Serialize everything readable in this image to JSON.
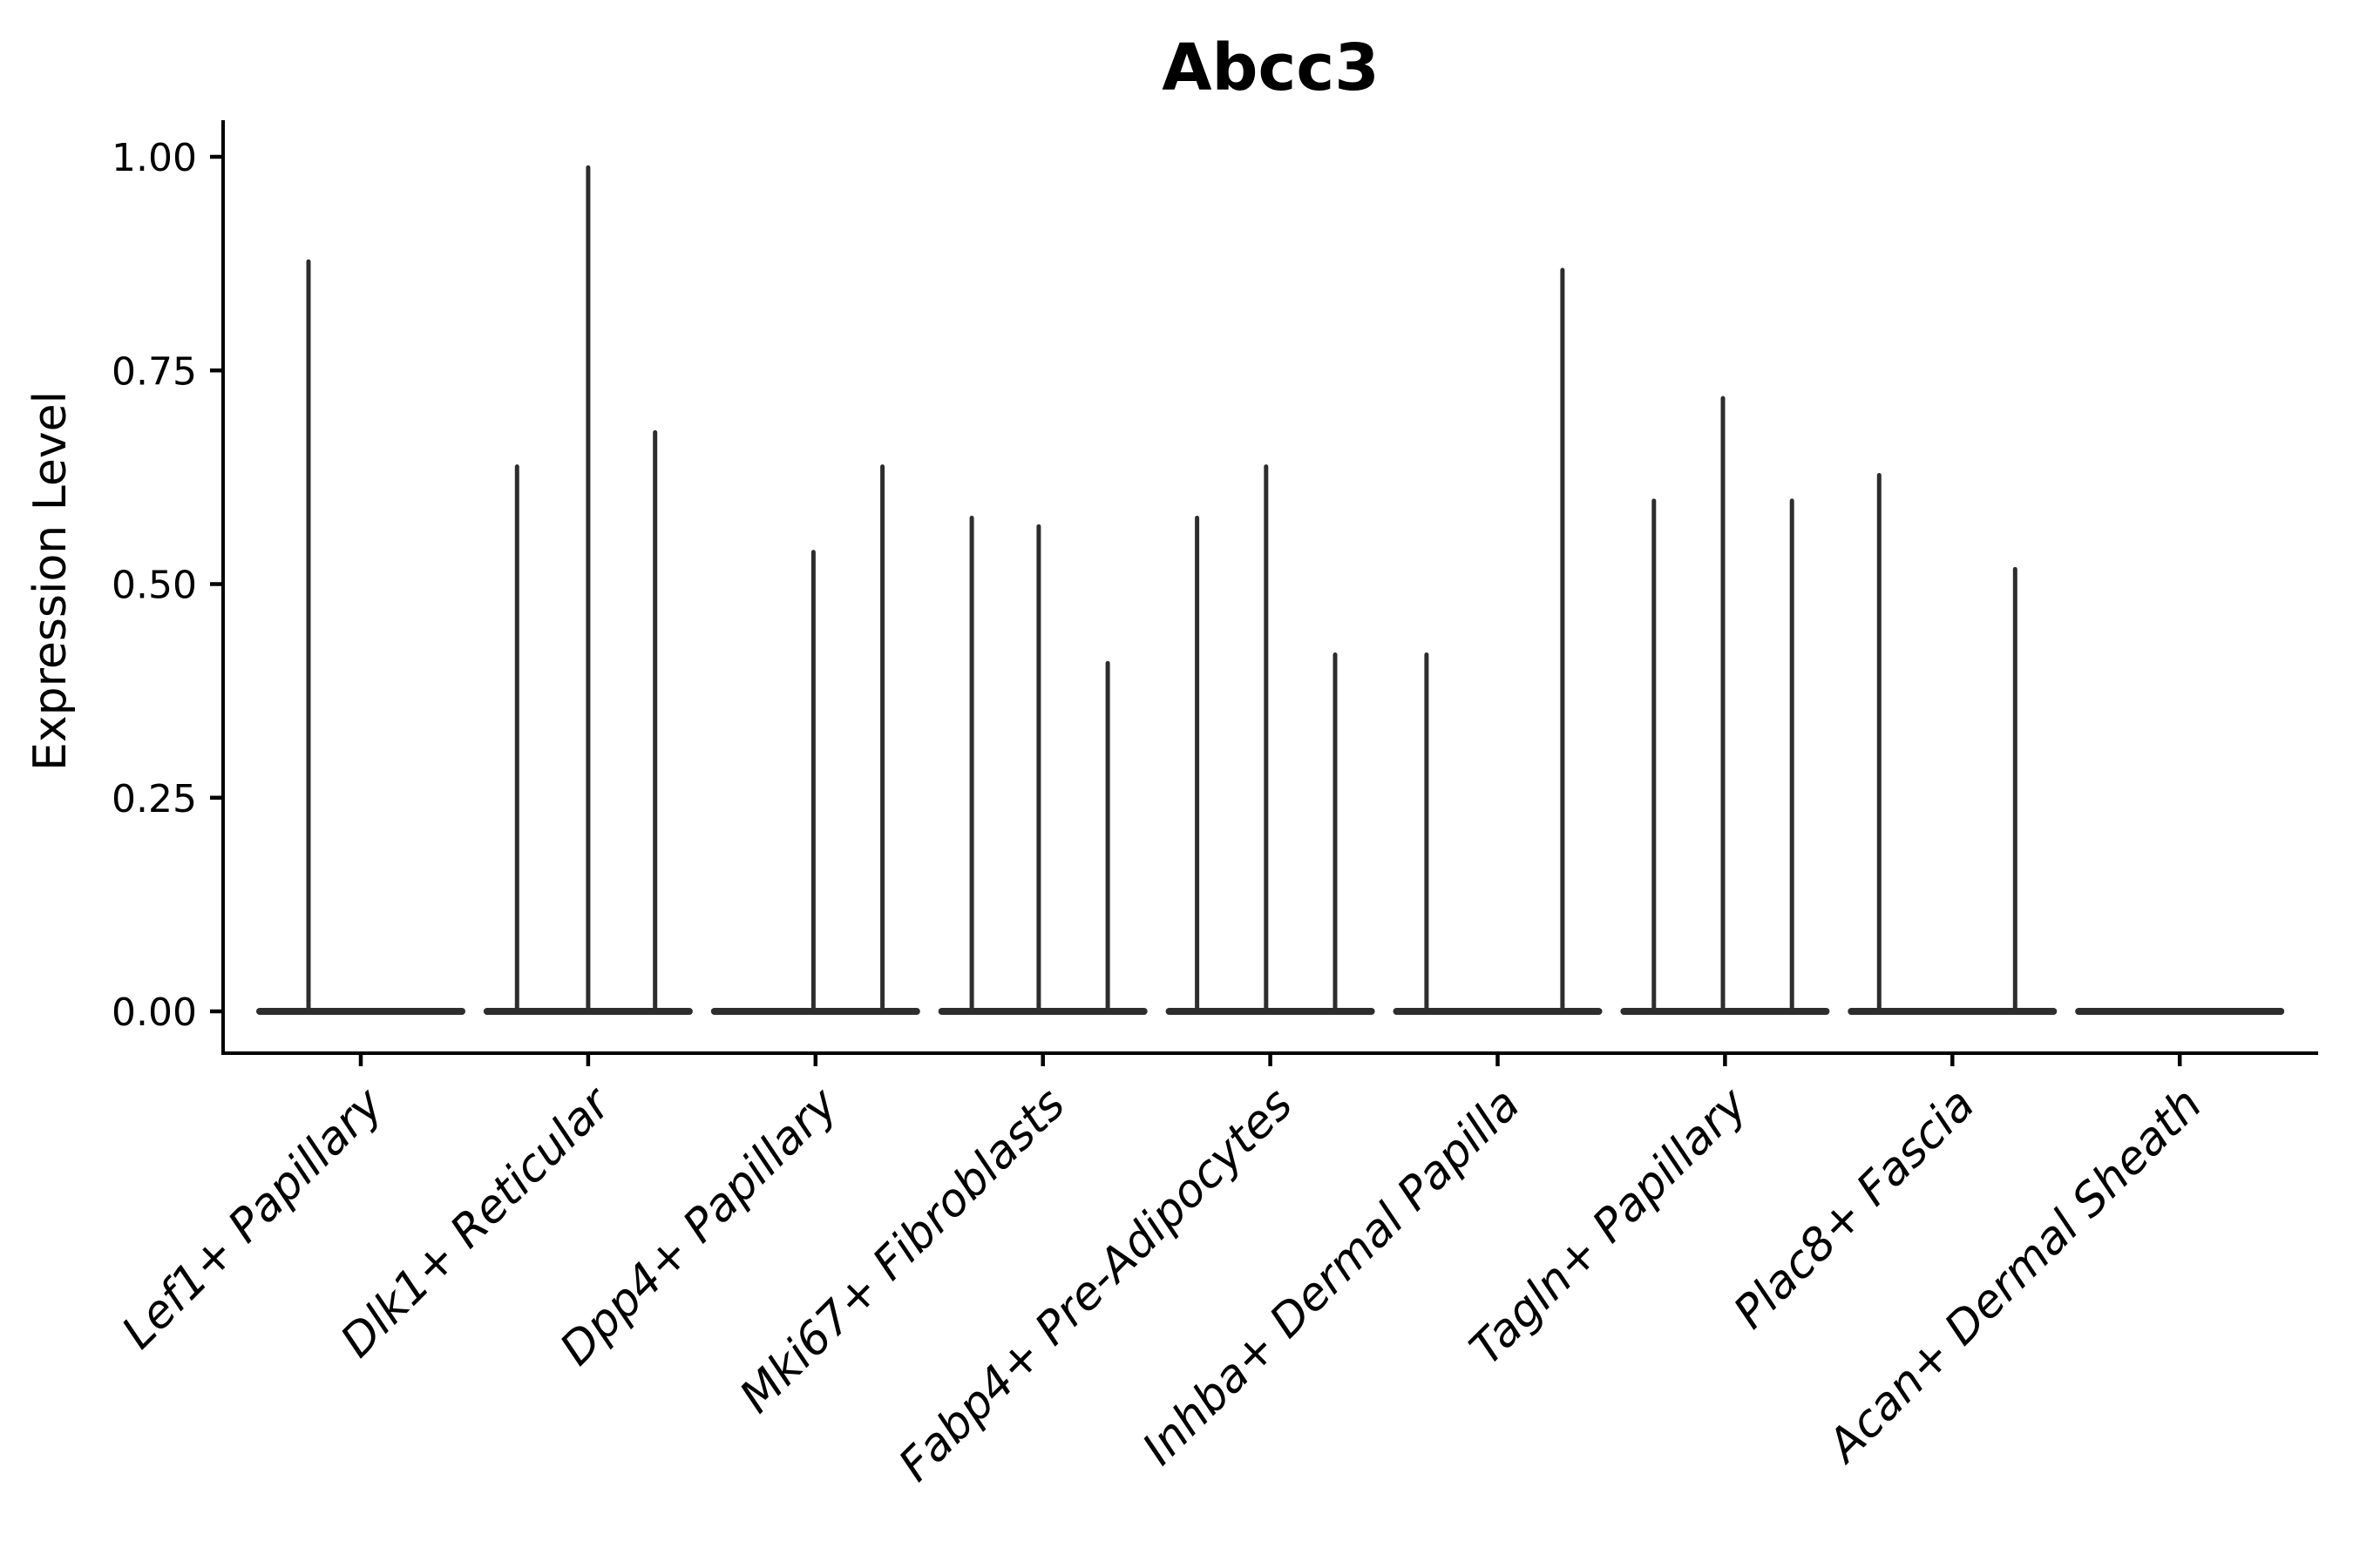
{
  "chart_data": {
    "type": "violin",
    "title": "Abcc3",
    "ylabel": "Expression Level",
    "xlabel": "",
    "ylim": [
      0,
      1.04
    ],
    "yticks": [
      "0.00",
      "0.25",
      "0.50",
      "0.75",
      "1.00"
    ],
    "ytick_values": [
      0,
      0.25,
      0.5,
      0.75,
      1.0
    ],
    "grid": false,
    "legend": "none",
    "style": {
      "violin_color": "#2d2d2d",
      "axis_color": "#000000",
      "text_color": "#000000",
      "background": "#ffffff"
    },
    "categories": [
      {
        "label": "Lef1+ Papillary",
        "spikes": [
          {
            "x_frac": 0.25,
            "value": 0.88
          }
        ]
      },
      {
        "label": "Dlk1+ Reticular",
        "spikes": [
          {
            "x_frac": 0.16,
            "value": 0.64
          },
          {
            "x_frac": 0.5,
            "value": 0.99
          },
          {
            "x_frac": 0.82,
            "value": 0.68
          }
        ]
      },
      {
        "label": "Dpp4+ Papillary",
        "spikes": [
          {
            "x_frac": 0.49,
            "value": 0.54
          },
          {
            "x_frac": 0.82,
            "value": 0.64
          }
        ]
      },
      {
        "label": "Mki67+ Fibroblasts",
        "spikes": [
          {
            "x_frac": 0.16,
            "value": 0.58
          },
          {
            "x_frac": 0.48,
            "value": 0.57
          },
          {
            "x_frac": 0.81,
            "value": 0.41
          }
        ]
      },
      {
        "label": "Fabp4+ Pre-Adipocytes",
        "spikes": [
          {
            "x_frac": 0.15,
            "value": 0.58
          },
          {
            "x_frac": 0.48,
            "value": 0.64
          },
          {
            "x_frac": 0.81,
            "value": 0.42
          }
        ]
      },
      {
        "label": "Inhba+ Dermal Papilla",
        "spikes": [
          {
            "x_frac": 0.16,
            "value": 0.42
          },
          {
            "x_frac": 0.81,
            "value": 0.87
          }
        ]
      },
      {
        "label": "Tagln+ Papillary",
        "spikes": [
          {
            "x_frac": 0.16,
            "value": 0.6
          },
          {
            "x_frac": 0.49,
            "value": 0.72
          },
          {
            "x_frac": 0.82,
            "value": 0.6
          }
        ]
      },
      {
        "label": "Plac8+ Fascia",
        "spikes": [
          {
            "x_frac": 0.15,
            "value": 0.63
          },
          {
            "x_frac": 0.8,
            "value": 0.52
          }
        ]
      },
      {
        "label": "Acan+ Dermal Sheath",
        "spikes": []
      }
    ]
  }
}
